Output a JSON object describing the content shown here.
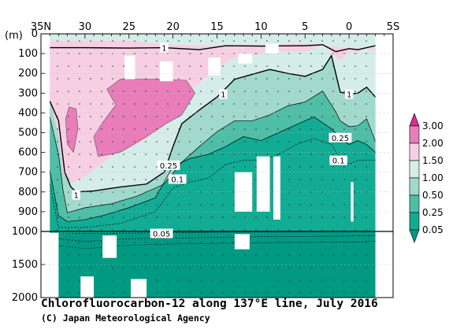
{
  "chart_data": {
    "type": "heatmap",
    "title": "Chlorofluorocarbon-12 along 137°E line, July 2016",
    "credit": "(C) Japan Meteorological Agency",
    "unit_label": "(m)",
    "x_axis": {
      "range": [
        35,
        -5
      ],
      "ticks": [
        {
          "value": 35,
          "label": "35N"
        },
        {
          "value": 30,
          "label": "30"
        },
        {
          "value": 25,
          "label": "25"
        },
        {
          "value": 20,
          "label": "20"
        },
        {
          "value": 15,
          "label": "15"
        },
        {
          "value": 10,
          "label": "10"
        },
        {
          "value": 5,
          "label": "5"
        },
        {
          "value": 0,
          "label": "0"
        },
        {
          "value": -5,
          "label": "5S"
        }
      ]
    },
    "y_axis": {
      "upper_range": [
        0,
        1000
      ],
      "lower_range": [
        1000,
        2000
      ],
      "ticks": [
        {
          "value": 0,
          "label": "0"
        },
        {
          "value": 100,
          "label": "100"
        },
        {
          "value": 200,
          "label": "200"
        },
        {
          "value": 300,
          "label": "300"
        },
        {
          "value": 400,
          "label": "400"
        },
        {
          "value": 500,
          "label": "500"
        },
        {
          "value": 600,
          "label": "600"
        },
        {
          "value": 700,
          "label": "700"
        },
        {
          "value": 800,
          "label": "800"
        },
        {
          "value": 900,
          "label": "900"
        },
        {
          "value": 1000,
          "label": "1000"
        },
        {
          "value": 1500,
          "label": "1500"
        },
        {
          "value": 2000,
          "label": "2000"
        }
      ]
    },
    "colors": {
      "below_0.05": "#009a83",
      "0.05-0.25": "#12ab94",
      "0.25-0.50": "#4fbea7",
      "0.50-1.00": "#a2d9cd",
      "1.00-1.50": "#d5ede8",
      "1.50-2.00": "#f7cfe3",
      "2.00-3.00": "#e97dba",
      "above_3.00": "#dc2a91"
    },
    "legend": {
      "levels": [
        "3.00",
        "2.00",
        "1.50",
        "1.00",
        "0.50",
        "0.25",
        "0.05"
      ]
    },
    "contour_labels": [
      {
        "text": "1",
        "lat": 31.0,
        "depth": 815
      },
      {
        "text": "1",
        "lat": 21.0,
        "depth": 70
      },
      {
        "text": "1",
        "lat": 14.3,
        "depth": 305
      },
      {
        "text": "1",
        "lat": 0.0,
        "depth": 305
      },
      {
        "text": "0.25",
        "lat": 20.5,
        "depth": 665
      },
      {
        "text": "0.1",
        "lat": 19.5,
        "depth": 735
      },
      {
        "text": "0.25",
        "lat": 1.0,
        "depth": 525
      },
      {
        "text": "0.1",
        "lat": 1.2,
        "depth": 640
      },
      {
        "text": "0.05",
        "lat": 21.3,
        "depth": 1030
      }
    ],
    "transect_lat_range": [
      34,
      -3
    ],
    "contours": {
      "shallow_1.0": [
        [
          34,
          0
        ],
        [
          -3,
          0
        ]
      ],
      "contour_1.0": [
        [
          34,
          340
        ],
        [
          33,
          440
        ],
        [
          32.3,
          700
        ],
        [
          31.6,
          775
        ],
        [
          31,
          800
        ],
        [
          29,
          795
        ],
        [
          26,
          775
        ],
        [
          23,
          760
        ],
        [
          21,
          700
        ],
        [
          20,
          570
        ],
        [
          19,
          455
        ],
        [
          17,
          385
        ],
        [
          15,
          320
        ],
        [
          13,
          230
        ],
        [
          11,
          205
        ],
        [
          9,
          180
        ],
        [
          7,
          200
        ],
        [
          5,
          215
        ],
        [
          3,
          180
        ],
        [
          2,
          110
        ],
        [
          1,
          295
        ],
        [
          0,
          305
        ],
        [
          -1,
          300
        ],
        [
          -2,
          270
        ],
        [
          -3,
          320
        ]
      ],
      "contour_0.5": [
        [
          34,
          420
        ],
        [
          33,
          610
        ],
        [
          32.5,
          790
        ],
        [
          32,
          905
        ],
        [
          30,
          880
        ],
        [
          27,
          860
        ],
        [
          24,
          820
        ],
        [
          21,
          760
        ],
        [
          19,
          650
        ],
        [
          17,
          570
        ],
        [
          15,
          495
        ],
        [
          13,
          440
        ],
        [
          11,
          440
        ],
        [
          9,
          410
        ],
        [
          7,
          365
        ],
        [
          5,
          345
        ],
        [
          3,
          290
        ],
        [
          1.5,
          395
        ],
        [
          1,
          440
        ],
        [
          0,
          470
        ],
        [
          -1,
          465
        ],
        [
          -2,
          430
        ],
        [
          -3,
          545
        ]
      ],
      "contour_0.25": [
        [
          34,
          690
        ],
        [
          33,
          920
        ],
        [
          32,
          950
        ],
        [
          30,
          940
        ],
        [
          28,
          920
        ],
        [
          25,
          880
        ],
        [
          22,
          830
        ],
        [
          20,
          670
        ],
        [
          18,
          630
        ],
        [
          16,
          610
        ],
        [
          14,
          570
        ],
        [
          12,
          520
        ],
        [
          10,
          540
        ],
        [
          8,
          500
        ],
        [
          6,
          460
        ],
        [
          4,
          420
        ],
        [
          2,
          480
        ],
        [
          1,
          525
        ],
        [
          0,
          560
        ],
        [
          -1,
          540
        ],
        [
          -2,
          560
        ],
        [
          -3,
          600
        ]
      ]
    }
  }
}
